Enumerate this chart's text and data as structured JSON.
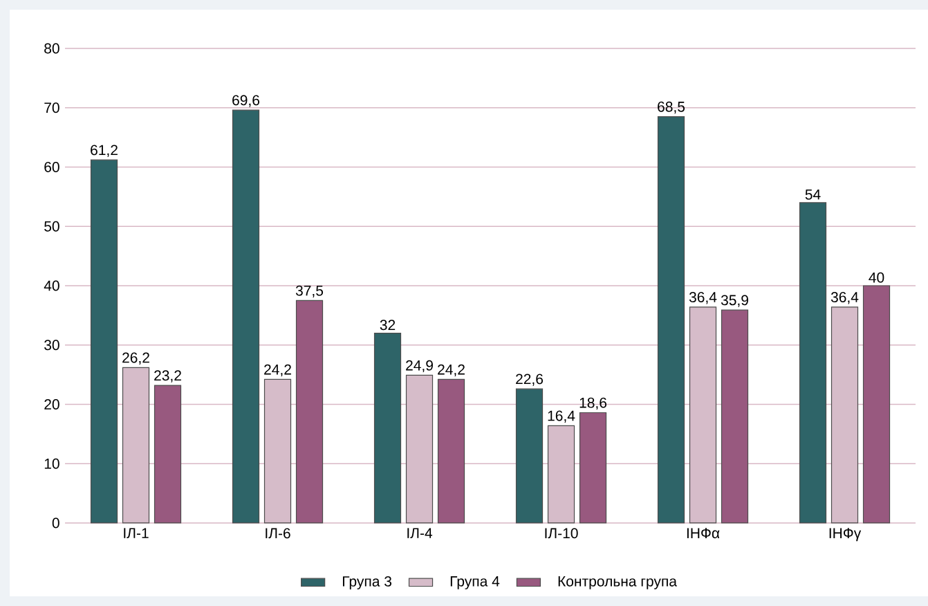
{
  "chart_data": {
    "type": "bar",
    "categories": [
      "ІЛ-1",
      "ІЛ-6",
      "ІЛ-4",
      "ІЛ-10",
      "ІНФα",
      "ІНФγ"
    ],
    "series": [
      {
        "name": "Група 3",
        "color": "#2e6468",
        "values": [
          61.2,
          69.6,
          32,
          22.6,
          68.5,
          54
        ],
        "value_labels": [
          "61,2",
          "69,6",
          "32",
          "22,6",
          "68,5",
          "54"
        ]
      },
      {
        "name": "Група 4",
        "color": "#d6bcc9",
        "values": [
          26.2,
          24.2,
          24.9,
          16.4,
          36.4,
          36.4
        ],
        "value_labels": [
          "26,2",
          "24,2",
          "24,9",
          "16,4",
          "36,4",
          "36,4"
        ]
      },
      {
        "name": "Контрольна група",
        "color": "#98597f",
        "values": [
          23.2,
          37.5,
          24.2,
          18.6,
          35.9,
          40
        ],
        "value_labels": [
          "23,2",
          "37,5",
          "24,2",
          "18,6",
          "35,9",
          "40"
        ]
      }
    ],
    "ylim": [
      0,
      80
    ],
    "yticks": [
      0,
      10,
      20,
      30,
      40,
      50,
      60,
      70,
      80
    ],
    "grid": "y",
    "legend": "bottom"
  }
}
